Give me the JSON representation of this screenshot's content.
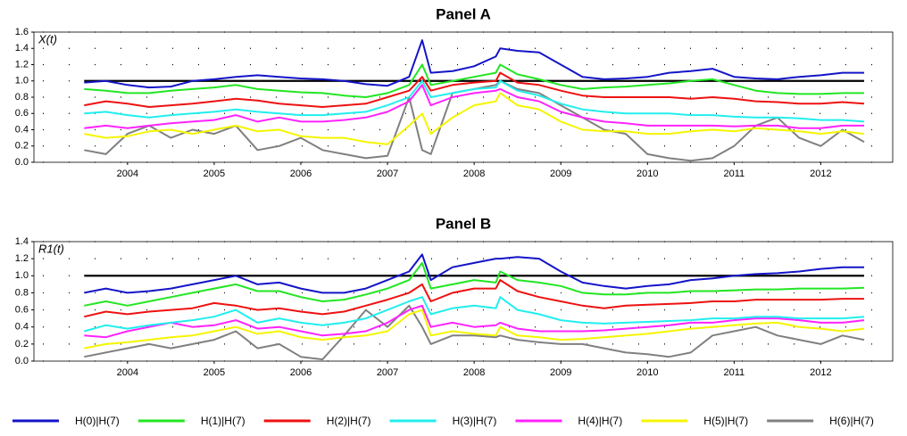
{
  "chart_data": [
    {
      "type": "line",
      "title": "Panel A",
      "ylabel": "X(t)",
      "grid": true,
      "legend": "bottom",
      "hline": 1.0,
      "x": [
        2003.5,
        2003.75,
        2004,
        2004.25,
        2004.5,
        2004.75,
        2005,
        2005.25,
        2005.5,
        2005.75,
        2006,
        2006.25,
        2006.5,
        2006.75,
        2007,
        2007.25,
        2007.4,
        2007.5,
        2007.75,
        2008,
        2008.25,
        2008.3,
        2008.5,
        2008.75,
        2009,
        2009.25,
        2009.5,
        2009.75,
        2010,
        2010.25,
        2010.5,
        2010.75,
        2011,
        2011.25,
        2011.5,
        2011.75,
        2012,
        2012.25,
        2012.5
      ],
      "xlim": [
        2002.92,
        2012.83
      ],
      "xticks": [
        2004,
        2005,
        2006,
        2007,
        2008,
        2009,
        2010,
        2011,
        2012
      ],
      "ylim": [
        0,
        1.6
      ],
      "yticks": [
        {
          "value": 0,
          "label": "0.0"
        },
        0.2,
        0.4,
        0.6,
        0.8,
        {
          "value": 1,
          "label": "1.0"
        },
        1.2,
        1.4,
        1.6
      ],
      "series": [
        {
          "name": "H(0)|H(7)",
          "color": "#1414c8",
          "values": [
            0.98,
            1.0,
            0.95,
            0.92,
            0.93,
            1.0,
            1.02,
            1.05,
            1.07,
            1.05,
            1.03,
            1.02,
            1.0,
            0.96,
            0.94,
            1.05,
            1.5,
            1.1,
            1.12,
            1.18,
            1.3,
            1.4,
            1.37,
            1.35,
            1.2,
            1.05,
            1.02,
            1.03,
            1.05,
            1.1,
            1.12,
            1.15,
            1.05,
            1.03,
            1.02,
            1.05,
            1.07,
            1.1,
            1.1
          ]
        },
        {
          "name": "H(1)|H(7)",
          "color": "#22e622",
          "values": [
            0.9,
            0.88,
            0.85,
            0.85,
            0.88,
            0.9,
            0.92,
            0.95,
            0.9,
            0.88,
            0.86,
            0.85,
            0.82,
            0.8,
            0.85,
            0.95,
            1.2,
            0.95,
            1.0,
            1.05,
            1.1,
            1.2,
            1.08,
            1.02,
            0.95,
            0.9,
            0.92,
            0.93,
            0.95,
            0.97,
            1.0,
            1.02,
            0.95,
            0.88,
            0.85,
            0.84,
            0.84,
            0.85,
            0.85
          ]
        },
        {
          "name": "H(2)|H(7)",
          "color": "#ee1111",
          "values": [
            0.7,
            0.75,
            0.72,
            0.68,
            0.7,
            0.72,
            0.75,
            0.78,
            0.76,
            0.72,
            0.7,
            0.68,
            0.7,
            0.72,
            0.8,
            0.88,
            1.05,
            0.88,
            0.95,
            0.98,
            1.0,
            1.1,
            0.98,
            0.95,
            0.88,
            0.82,
            0.8,
            0.8,
            0.8,
            0.8,
            0.78,
            0.8,
            0.78,
            0.75,
            0.74,
            0.72,
            0.72,
            0.74,
            0.72
          ]
        },
        {
          "name": "H(3)|H(7)",
          "color": "#22eeee",
          "values": [
            0.6,
            0.62,
            0.58,
            0.55,
            0.58,
            0.6,
            0.62,
            0.65,
            0.62,
            0.6,
            0.58,
            0.58,
            0.6,
            0.62,
            0.7,
            0.8,
            1.0,
            0.8,
            0.85,
            0.9,
            0.92,
            1.0,
            0.88,
            0.82,
            0.72,
            0.65,
            0.62,
            0.6,
            0.6,
            0.6,
            0.58,
            0.58,
            0.56,
            0.55,
            0.55,
            0.54,
            0.52,
            0.52,
            0.5
          ]
        },
        {
          "name": "H(4)|H(7)",
          "color": "#ff22ff",
          "values": [
            0.42,
            0.45,
            0.42,
            0.45,
            0.48,
            0.5,
            0.52,
            0.58,
            0.5,
            0.55,
            0.5,
            0.5,
            0.52,
            0.55,
            0.62,
            0.75,
            0.95,
            0.7,
            0.8,
            0.85,
            0.88,
            0.9,
            0.8,
            0.75,
            0.62,
            0.55,
            0.5,
            0.48,
            0.45,
            0.45,
            0.45,
            0.45,
            0.44,
            0.45,
            0.45,
            0.42,
            0.42,
            0.45,
            0.45
          ]
        },
        {
          "name": "H(5)|H(7)",
          "color": "#f5f500",
          "values": [
            0.35,
            0.3,
            0.32,
            0.38,
            0.4,
            0.35,
            0.4,
            0.45,
            0.38,
            0.4,
            0.32,
            0.3,
            0.3,
            0.25,
            0.22,
            0.45,
            0.6,
            0.35,
            0.55,
            0.7,
            0.75,
            0.85,
            0.7,
            0.65,
            0.5,
            0.4,
            0.38,
            0.38,
            0.35,
            0.35,
            0.38,
            0.4,
            0.38,
            0.42,
            0.4,
            0.38,
            0.35,
            0.38,
            0.35
          ]
        },
        {
          "name": "H(6)|H(7)",
          "color": "#808080",
          "values": [
            0.15,
            0.1,
            0.35,
            0.45,
            0.3,
            0.4,
            0.35,
            0.45,
            0.15,
            0.2,
            0.3,
            0.15,
            0.1,
            0.05,
            0.08,
            0.8,
            0.15,
            0.1,
            0.85,
            0.9,
            0.95,
            1.0,
            0.9,
            0.85,
            0.7,
            0.55,
            0.4,
            0.35,
            0.1,
            0.05,
            0.02,
            0.05,
            0.2,
            0.45,
            0.55,
            0.3,
            0.2,
            0.4,
            0.25
          ]
        }
      ]
    },
    {
      "type": "line",
      "title": "Panel B",
      "ylabel": "R1(t)",
      "grid": true,
      "hline": 1.0,
      "x": [
        2003.5,
        2003.75,
        2004,
        2004.25,
        2004.5,
        2004.75,
        2005,
        2005.25,
        2005.5,
        2005.75,
        2006,
        2006.25,
        2006.5,
        2006.75,
        2007,
        2007.25,
        2007.4,
        2007.5,
        2007.75,
        2008,
        2008.25,
        2008.3,
        2008.5,
        2008.75,
        2009,
        2009.25,
        2009.5,
        2009.75,
        2010,
        2010.25,
        2010.5,
        2010.75,
        2011,
        2011.25,
        2011.5,
        2011.75,
        2012,
        2012.25,
        2012.5
      ],
      "xlim": [
        2002.92,
        2012.83
      ],
      "xticks": [
        2004,
        2005,
        2006,
        2007,
        2008,
        2009,
        2010,
        2011,
        2012
      ],
      "ylim": [
        0,
        1.4
      ],
      "yticks": [
        {
          "value": 0,
          "label": "0.0"
        },
        0.2,
        0.4,
        0.6,
        0.8,
        {
          "value": 1,
          "label": "1.0"
        },
        1.2,
        1.4
      ],
      "series": [
        {
          "name": "H(0)|H(7)",
          "color": "#1414c8",
          "values": [
            0.8,
            0.85,
            0.8,
            0.82,
            0.85,
            0.9,
            0.95,
            1.0,
            0.9,
            0.92,
            0.85,
            0.8,
            0.8,
            0.85,
            0.95,
            1.05,
            1.25,
            0.95,
            1.1,
            1.15,
            1.2,
            1.2,
            1.22,
            1.2,
            1.05,
            0.92,
            0.88,
            0.85,
            0.88,
            0.9,
            0.95,
            0.97,
            1.0,
            1.02,
            1.03,
            1.05,
            1.08,
            1.1,
            1.1
          ]
        },
        {
          "name": "H(1)|H(7)",
          "color": "#22e622",
          "values": [
            0.65,
            0.7,
            0.65,
            0.7,
            0.75,
            0.8,
            0.85,
            0.9,
            0.82,
            0.82,
            0.75,
            0.7,
            0.72,
            0.78,
            0.85,
            0.95,
            1.15,
            0.85,
            0.9,
            0.95,
            0.92,
            1.05,
            0.95,
            0.92,
            0.88,
            0.8,
            0.78,
            0.78,
            0.8,
            0.8,
            0.82,
            0.82,
            0.83,
            0.84,
            0.84,
            0.85,
            0.85,
            0.85,
            0.86
          ]
        },
        {
          "name": "H(2)|H(7)",
          "color": "#ee1111",
          "values": [
            0.52,
            0.58,
            0.55,
            0.58,
            0.6,
            0.62,
            0.68,
            0.65,
            0.6,
            0.62,
            0.58,
            0.55,
            0.58,
            0.65,
            0.72,
            0.8,
            0.9,
            0.7,
            0.8,
            0.85,
            0.85,
            0.95,
            0.82,
            0.75,
            0.7,
            0.65,
            0.62,
            0.65,
            0.66,
            0.67,
            0.68,
            0.7,
            0.7,
            0.72,
            0.72,
            0.72,
            0.72,
            0.73,
            0.73
          ]
        },
        {
          "name": "H(3)|H(7)",
          "color": "#22eeee",
          "values": [
            0.35,
            0.42,
            0.38,
            0.42,
            0.45,
            0.48,
            0.52,
            0.6,
            0.45,
            0.5,
            0.45,
            0.42,
            0.45,
            0.5,
            0.6,
            0.7,
            0.75,
            0.55,
            0.62,
            0.65,
            0.62,
            0.75,
            0.6,
            0.55,
            0.48,
            0.45,
            0.44,
            0.45,
            0.46,
            0.47,
            0.48,
            0.5,
            0.5,
            0.52,
            0.52,
            0.5,
            0.5,
            0.5,
            0.52
          ]
        },
        {
          "name": "H(4)|H(7)",
          "color": "#ff22ff",
          "values": [
            0.3,
            0.28,
            0.35,
            0.4,
            0.45,
            0.4,
            0.42,
            0.48,
            0.38,
            0.4,
            0.35,
            0.3,
            0.32,
            0.35,
            0.45,
            0.6,
            0.65,
            0.4,
            0.45,
            0.4,
            0.42,
            0.45,
            0.38,
            0.35,
            0.35,
            0.35,
            0.36,
            0.38,
            0.4,
            0.42,
            0.45,
            0.45,
            0.48,
            0.5,
            0.5,
            0.48,
            0.45,
            0.45,
            0.48
          ]
        },
        {
          "name": "H(5)|H(7)",
          "color": "#f5f500",
          "values": [
            0.15,
            0.2,
            0.22,
            0.25,
            0.28,
            0.3,
            0.35,
            0.4,
            0.32,
            0.35,
            0.28,
            0.25,
            0.28,
            0.3,
            0.35,
            0.55,
            0.6,
            0.3,
            0.35,
            0.32,
            0.3,
            0.4,
            0.3,
            0.28,
            0.25,
            0.26,
            0.28,
            0.3,
            0.32,
            0.35,
            0.38,
            0.4,
            0.42,
            0.44,
            0.45,
            0.4,
            0.38,
            0.35,
            0.38
          ]
        },
        {
          "name": "H(6)|H(7)",
          "color": "#808080",
          "values": [
            0.05,
            0.1,
            0.15,
            0.2,
            0.15,
            0.2,
            0.25,
            0.35,
            0.15,
            0.2,
            0.05,
            0.02,
            0.3,
            0.6,
            0.4,
            0.65,
            0.4,
            0.2,
            0.3,
            0.3,
            0.28,
            0.3,
            0.25,
            0.22,
            0.2,
            0.2,
            0.15,
            0.1,
            0.08,
            0.05,
            0.1,
            0.3,
            0.35,
            0.4,
            0.3,
            0.25,
            0.2,
            0.3,
            0.25
          ]
        }
      ]
    }
  ]
}
